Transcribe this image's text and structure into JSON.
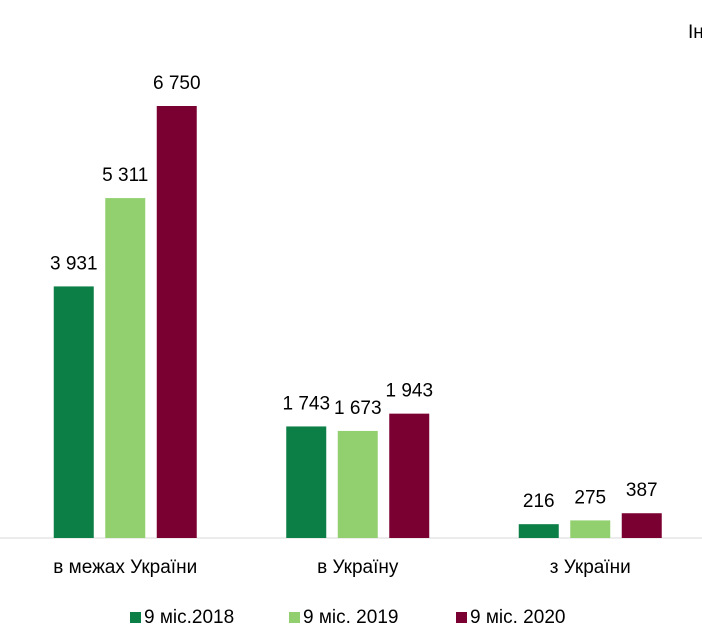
{
  "chart_data": {
    "type": "bar",
    "annotation": "Ін",
    "categories": [
      "в межах України",
      "в Україну",
      "з України"
    ],
    "series": [
      {
        "name": "9 міс.2018",
        "color": "#0b7f46",
        "values": [
          3931,
          1743,
          216
        ],
        "value_labels": [
          "3 931",
          "1 743",
          "216"
        ]
      },
      {
        "name": "9 міс. 2019",
        "color": "#92d06f",
        "values": [
          5311,
          1673,
          275
        ],
        "value_labels": [
          "5 311",
          "1 673",
          "275"
        ]
      },
      {
        "name": "9 міс. 2020",
        "color": "#7b0032",
        "values": [
          6750,
          1943,
          387
        ],
        "value_labels": [
          "6 750",
          "1 943",
          "387"
        ]
      }
    ],
    "ylim": [
      0,
      7000
    ]
  }
}
